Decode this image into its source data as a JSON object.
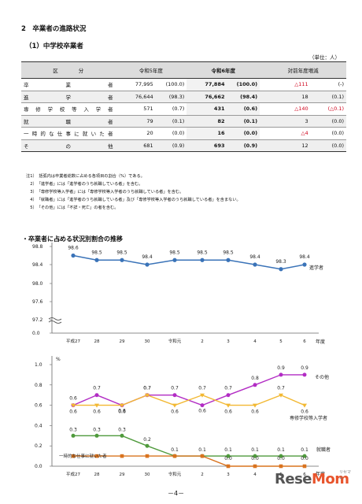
{
  "section_title": "2　卒業者の進路状況",
  "sub_title": "（1）中学校卒業者",
  "unit": "（単位：人）",
  "table": {
    "headers": [
      "区　　　　分",
      "令和5年度",
      "令和6年度",
      "対前年度増減"
    ],
    "rows": [
      {
        "label": "卒　業　者",
        "v5": "77,995",
        "p5": "(100.0)",
        "v6": "77,884",
        "p6": "(100.0)",
        "dv": "△111",
        "dp": "(-)",
        "neg_dv": true,
        "neg_dp": false
      },
      {
        "label": "進　学　者",
        "v5": "76,644",
        "p5": "(98.3)",
        "v6": "76,662",
        "p6": "(98.4)",
        "dv": "18",
        "dp": "(0.1)",
        "neg_dv": false,
        "neg_dp": false
      },
      {
        "label": "専修学校等入学者",
        "v5": "571",
        "p5": "(0.7)",
        "v6": "431",
        "p6": "(0.6)",
        "dv": "△140",
        "dp": "(△0.1)",
        "neg_dv": true,
        "neg_dp": true
      },
      {
        "label": "就　職　者",
        "v5": "79",
        "p5": "(0.1)",
        "v6": "82",
        "p6": "(0.1)",
        "dv": "3",
        "dp": "(0.0)",
        "neg_dv": false,
        "neg_dp": false
      },
      {
        "label": "一時的な仕事に就いた者",
        "v5": "20",
        "p5": "(0.0)",
        "v6": "16",
        "p6": "(0.0)",
        "dv": "△4",
        "dp": "(0.0)",
        "neg_dv": true,
        "neg_dp": false
      },
      {
        "label": "そ　の　他",
        "v5": "681",
        "p5": "(0.9)",
        "v6": "693",
        "p6": "(0.9)",
        "dv": "12",
        "dp": "(0.0)",
        "neg_dv": false,
        "neg_dp": false
      }
    ]
  },
  "notes": [
    "注1）　括弧内は卒業者総数に占める各項目の割合（%）である。",
    "　2）　「進学者」には「進学者のうち就職している者」を含む。",
    "　3）　「専修学校等入学者」には「専修学校等入学者のうち就職している者」を含む。",
    "　4）　「就職者」には「進学者のうち就職している者」及び「専修学校等入学者のうち就職している者」を含まない。",
    "　5）　「その他」には「不詳・死亡」の者を含む。"
  ],
  "chart_title": "・卒業者に占める状況別割合の推移",
  "chart_data": [
    {
      "type": "line",
      "ylabel": "%",
      "xlabel": "年度",
      "categories": [
        "平成27",
        "28",
        "29",
        "30",
        "令和元",
        "2",
        "3",
        "4",
        "5",
        "6"
      ],
      "yticks": [
        "98.8",
        "98.4",
        "98.0",
        "97.6",
        "97.2",
        "0.0"
      ],
      "series": [
        {
          "name": "進学者",
          "values": [
            98.6,
            98.5,
            98.5,
            98.4,
            98.5,
            98.5,
            98.5,
            98.4,
            98.3,
            98.4
          ],
          "labels": [
            "98.6",
            "98.5",
            "98.5",
            "98.4",
            "98.5",
            "98.5",
            "98.5",
            "98.4",
            "98.3",
            "98.4"
          ],
          "color": "#3a73b8"
        }
      ]
    },
    {
      "type": "line",
      "ylabel": "%",
      "xlabel": "年度",
      "categories": [
        "平成27",
        "28",
        "29",
        "30",
        "令和元",
        "2",
        "3",
        "4",
        "5",
        "6"
      ],
      "yticks": [
        "1.0",
        "0.8",
        "0.6",
        "0.4",
        "0.2",
        "0.0"
      ],
      "ylim": [
        0,
        1.0
      ],
      "series": [
        {
          "name": "その他",
          "values": [
            0.6,
            0.7,
            0.6,
            0.7,
            0.7,
            0.6,
            0.7,
            0.8,
            0.9,
            0.9
          ],
          "labels": [
            "0.6",
            "0.7",
            "0.6",
            "0.7",
            "0.7",
            "0.6",
            "0.7",
            "0.8",
            "0.9",
            "0.9"
          ],
          "color": "#b22cc4"
        },
        {
          "name": "専修学校等入学者",
          "values": [
            0.6,
            0.6,
            0.6,
            0.7,
            0.6,
            0.7,
            0.6,
            0.6,
            0.7,
            0.6
          ],
          "labels": [
            "0.6",
            "0.6",
            "0.6",
            "0.7",
            "0.6",
            "0.7",
            "0.6",
            "0.6",
            "0.7",
            "0.6"
          ],
          "color": "#f2b832"
        },
        {
          "name": "就職者",
          "values": [
            0.3,
            0.3,
            0.3,
            0.2,
            0.1,
            0.1,
            0.1,
            0.1,
            0.1,
            0.1
          ],
          "labels": [
            "0.3",
            "0.3",
            "0.3",
            "0.2",
            "0.1",
            "0.1",
            "0.1",
            "0.1",
            "0.1",
            "0.1"
          ],
          "color": "#4f9a3c"
        },
        {
          "name": "一時的な仕事に就いた者",
          "values": [
            0.1,
            0.1,
            0.1,
            0.1,
            0.1,
            0.1,
            0.0,
            0.0,
            0.0,
            0.0
          ],
          "labels": [
            "",
            "",
            "",
            "",
            "",
            "",
            "0.0",
            "0.0",
            "0.0",
            "0.0"
          ],
          "color": "#d9731f"
        }
      ]
    }
  ],
  "footer": "－4－",
  "logo": {
    "main_a": "Rese",
    "main_b": "Mom",
    "kana": "リセマム"
  }
}
